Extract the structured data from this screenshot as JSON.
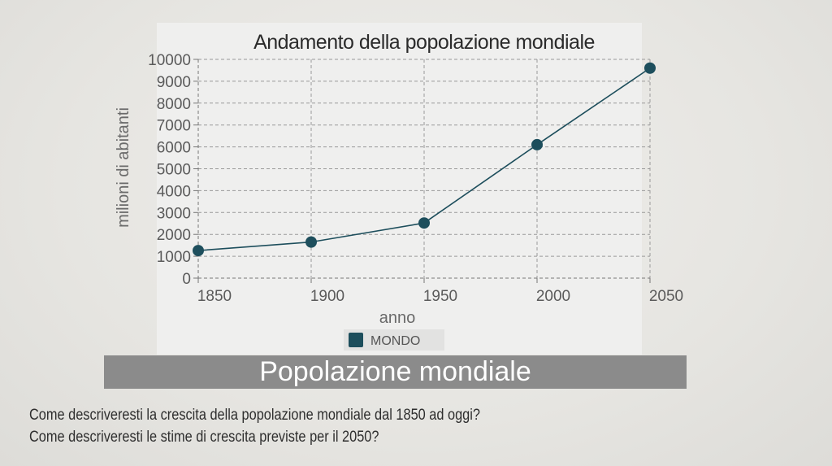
{
  "chart_data": {
    "type": "line",
    "title": "Andamento della popolazione mondiale",
    "xlabel": "anno",
    "ylabel": "milioni di abitanti",
    "x": [
      1850,
      1900,
      1950,
      2000,
      2050
    ],
    "xticks": [
      "1850",
      "1900",
      "1950",
      "2000",
      "2050"
    ],
    "yticks": [
      "0",
      "1000",
      "2000",
      "3000",
      "4000",
      "5000",
      "6000",
      "7000",
      "8000",
      "9000",
      "10000"
    ],
    "xlim": [
      1850,
      2050
    ],
    "ylim": [
      0,
      10000
    ],
    "grid": true,
    "legend_position": "bottom",
    "series": [
      {
        "name": "MONDO",
        "color": "#1d4e5c",
        "x": [
          1850,
          1900,
          1950,
          2000,
          2050
        ],
        "values": [
          1260,
          1650,
          2520,
          6100,
          9600
        ]
      }
    ]
  },
  "caption": "Popolazione mondiale",
  "questions": [
    "Come descriveresti la crescita della popolazione mondiale dal 1850 ad oggi?",
    "Come descriveresti le stime di crescita previste per il 2050?"
  ]
}
